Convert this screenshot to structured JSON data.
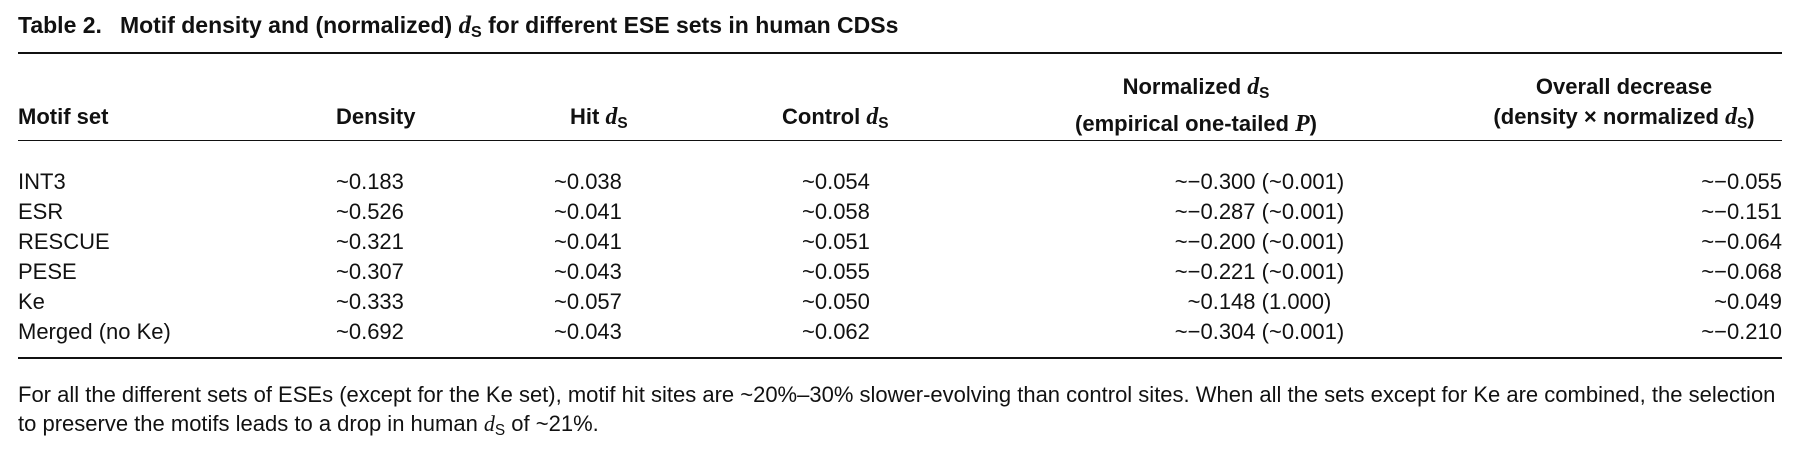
{
  "table": {
    "label": "Table 2.",
    "title_pre": "Motif density and (normalized) ",
    "title_var": "d",
    "title_sub": "S",
    "title_post": " for different ESE sets in human CDSs"
  },
  "headers": {
    "motif_set": "Motif set",
    "density": "Density",
    "hit_pre": "Hit ",
    "hit_var": "d",
    "hit_sub": "S",
    "control_pre": "Control ",
    "control_var": "d",
    "control_sub": "S",
    "normalized_pre": "Normalized ",
    "normalized_var": "d",
    "normalized_sub": "S",
    "normalized_line2_pre": "(empirical one-tailed ",
    "normalized_line2_var": "P",
    "normalized_line2_post": ")",
    "overall_line1": "Overall decrease",
    "overall_line2_pre": "(density × normalized ",
    "overall_line2_var": "d",
    "overall_line2_sub": "S",
    "overall_line2_post": ")"
  },
  "rows": [
    {
      "motif_set": "INT3",
      "density": "~0.183",
      "hit_ds": "~0.038",
      "control_ds": "~0.054",
      "normalized_ds": "~−0.300 (~0.001)",
      "overall_decrease": "~−0.055"
    },
    {
      "motif_set": "ESR",
      "density": "~0.526",
      "hit_ds": "~0.041",
      "control_ds": "~0.058",
      "normalized_ds": "~−0.287 (~0.001)",
      "overall_decrease": "~−0.151"
    },
    {
      "motif_set": "RESCUE",
      "density": "~0.321",
      "hit_ds": "~0.041",
      "control_ds": "~0.051",
      "normalized_ds": "~−0.200 (~0.001)",
      "overall_decrease": "~−0.064"
    },
    {
      "motif_set": "PESE",
      "density": "~0.307",
      "hit_ds": "~0.043",
      "control_ds": "~0.055",
      "normalized_ds": "~−0.221 (~0.001)",
      "overall_decrease": "~−0.068"
    },
    {
      "motif_set": "Ke",
      "density": "~0.333",
      "hit_ds": "~0.057",
      "control_ds": "~0.050",
      "normalized_ds": "~0.148 (1.000)",
      "overall_decrease": "~0.049"
    },
    {
      "motif_set": "Merged (no Ke)",
      "density": "~0.692",
      "hit_ds": "~0.043",
      "control_ds": "~0.062",
      "normalized_ds": "~−0.304 (~0.001)",
      "overall_decrease": "~−0.210"
    }
  ],
  "footnote": {
    "text_pre": "For all the different sets of ESEs (except for the Ke set), motif hit sites are ~20%–30% slower-evolving than control sites. When all the sets except for Ke are combined, the selection to preserve the motifs leads to a drop in human ",
    "var": "d",
    "sub": "S",
    "text_post": " of ~21%."
  }
}
